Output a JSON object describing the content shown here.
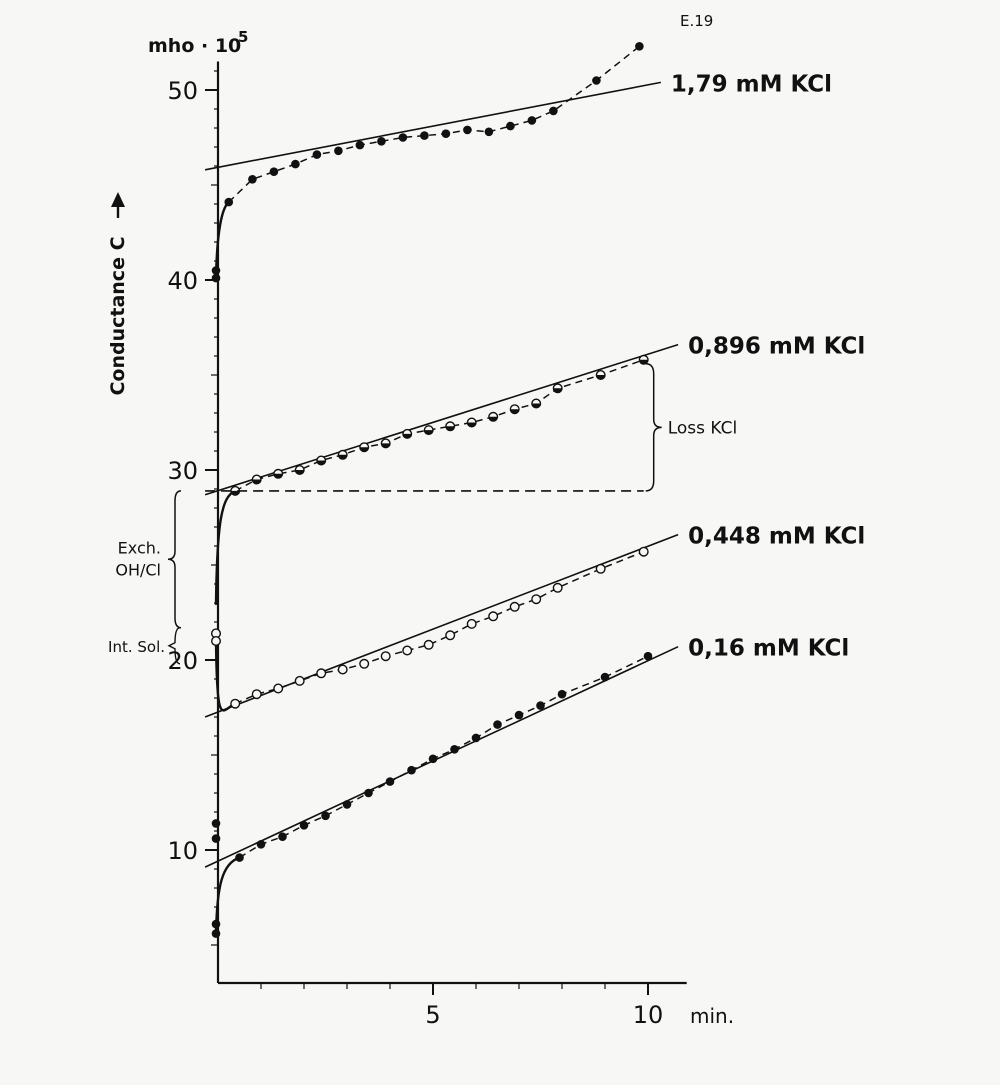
{
  "figure_code": "E.19",
  "chart_data": {
    "type": "scatter",
    "ylabel": "Conductance C",
    "yunit": "mho · 10",
    "yunit_exp": "5",
    "xunit": "min.",
    "xlim": [
      -0.5,
      10.9
    ],
    "ylim": [
      3.5,
      51.5
    ],
    "xticks": [
      5,
      10
    ],
    "yticks": [
      10,
      20,
      30,
      40,
      50
    ],
    "series": [
      {
        "name": "1,79 mM KCl",
        "marker": "filled",
        "points": [
          [
            0,
            40.5
          ],
          [
            0,
            40.1
          ],
          [
            0.25,
            44.1
          ],
          [
            0.8,
            45.3
          ],
          [
            1.3,
            45.7
          ],
          [
            1.8,
            46.1
          ],
          [
            2.3,
            46.6
          ],
          [
            2.8,
            46.8
          ],
          [
            3.3,
            47.1
          ],
          [
            3.8,
            47.3
          ],
          [
            4.3,
            47.5
          ],
          [
            4.8,
            47.6
          ],
          [
            5.3,
            47.7
          ],
          [
            5.8,
            47.9
          ],
          [
            6.3,
            47.8
          ],
          [
            6.8,
            48.1
          ],
          [
            7.3,
            48.4
          ],
          [
            7.8,
            48.9
          ],
          [
            8.8,
            50.5
          ],
          [
            9.8,
            52.3
          ]
        ],
        "fit": [
          [
            -0.3,
            45.8
          ],
          [
            10.3,
            50.4
          ]
        ]
      },
      {
        "name": "0,896 mM KCl",
        "marker": "half",
        "points": [
          [
            0.4,
            28.9
          ],
          [
            0.9,
            29.5
          ],
          [
            1.4,
            29.8
          ],
          [
            1.9,
            30.0
          ],
          [
            2.4,
            30.5
          ],
          [
            2.9,
            30.8
          ],
          [
            3.4,
            31.2
          ],
          [
            3.9,
            31.4
          ],
          [
            4.4,
            31.9
          ],
          [
            4.9,
            32.1
          ],
          [
            5.4,
            32.3
          ],
          [
            5.9,
            32.5
          ],
          [
            6.4,
            32.8
          ],
          [
            6.9,
            33.2
          ],
          [
            7.4,
            33.5
          ],
          [
            7.9,
            34.3
          ],
          [
            8.9,
            35.0
          ],
          [
            9.9,
            35.8
          ]
        ],
        "fit": [
          [
            -0.3,
            28.7
          ],
          [
            10.7,
            36.6
          ]
        ]
      },
      {
        "name": "0,448 mM KCl",
        "marker": "open",
        "points": [
          [
            0,
            21.4
          ],
          [
            0,
            21.0
          ],
          [
            0.4,
            17.7
          ],
          [
            0.9,
            18.2
          ],
          [
            1.4,
            18.5
          ],
          [
            1.9,
            18.9
          ],
          [
            2.4,
            19.3
          ],
          [
            2.9,
            19.5
          ],
          [
            3.4,
            19.8
          ],
          [
            3.9,
            20.2
          ],
          [
            4.4,
            20.5
          ],
          [
            4.9,
            20.8
          ],
          [
            5.4,
            21.3
          ],
          [
            5.9,
            21.9
          ],
          [
            6.4,
            22.3
          ],
          [
            6.9,
            22.8
          ],
          [
            7.4,
            23.2
          ],
          [
            7.9,
            23.8
          ],
          [
            8.9,
            24.8
          ],
          [
            9.9,
            25.7
          ]
        ],
        "fit": [
          [
            -0.3,
            17.0
          ],
          [
            10.7,
            26.6
          ]
        ]
      },
      {
        "name": "0,16 mM KCl",
        "marker": "filled",
        "points": [
          [
            0,
            11.4
          ],
          [
            0,
            10.6
          ],
          [
            0,
            6.1
          ],
          [
            0,
            5.6
          ],
          [
            0.5,
            9.6
          ],
          [
            1.0,
            10.3
          ],
          [
            1.5,
            10.7
          ],
          [
            2.0,
            11.3
          ],
          [
            2.5,
            11.8
          ],
          [
            3.0,
            12.4
          ],
          [
            3.5,
            13.0
          ],
          [
            4.0,
            13.6
          ],
          [
            4.5,
            14.2
          ],
          [
            5.0,
            14.8
          ],
          [
            5.5,
            15.3
          ],
          [
            6.0,
            15.9
          ],
          [
            6.5,
            16.6
          ],
          [
            7.0,
            17.1
          ],
          [
            7.5,
            17.6
          ],
          [
            8.0,
            18.2
          ],
          [
            9.0,
            19.1
          ],
          [
            10.0,
            20.2
          ]
        ],
        "fit": [
          [
            -0.3,
            9.1
          ],
          [
            10.7,
            20.7
          ]
        ]
      }
    ],
    "annotations": {
      "loss": "Loss KCl",
      "exch_1": "Exch.",
      "exch_2": "OH/Cl",
      "int_sol": "Int. Sol."
    }
  }
}
